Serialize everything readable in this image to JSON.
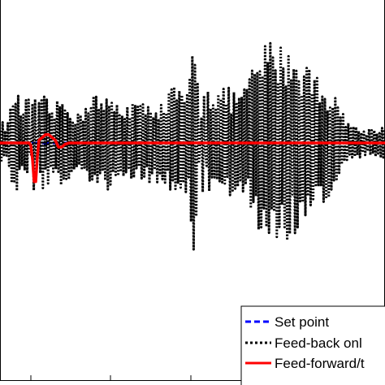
{
  "chart_data": {
    "type": "line",
    "title": "",
    "xlabel": "",
    "ylabel": "",
    "x_range": [
      0,
      474
    ],
    "ylim": [
      -1,
      1
    ],
    "grid": false,
    "legend_placement": "bottom-right",
    "series": [
      {
        "name": "Set point",
        "color": "#0000ff",
        "style": "dashed",
        "envelope": [
          [
            0,
            0
          ]
        ]
      },
      {
        "name": "Feed-back onl",
        "color": "#000000",
        "style": "dotted",
        "envelope": [
          [
            0,
            0.15
          ],
          [
            10,
            0.16
          ],
          [
            18,
            0.45
          ],
          [
            25,
            0.28
          ],
          [
            35,
            0.35
          ],
          [
            42,
            -0.55
          ],
          [
            48,
            0.3
          ],
          [
            55,
            0.35
          ],
          [
            65,
            0.25
          ],
          [
            75,
            0.35
          ],
          [
            85,
            0.3
          ],
          [
            95,
            0.2
          ],
          [
            105,
            0.3
          ],
          [
            115,
            0.42
          ],
          [
            125,
            0.3
          ],
          [
            135,
            0.35
          ],
          [
            145,
            0.3
          ],
          [
            155,
            0.28
          ],
          [
            162,
            0.35
          ],
          [
            170,
            0.3
          ],
          [
            180,
            0.28
          ],
          [
            190,
            0.32
          ],
          [
            200,
            0.3
          ],
          [
            210,
            0.4
          ],
          [
            218,
            0.45
          ],
          [
            225,
            0.35
          ],
          [
            232,
            0.38
          ],
          [
            238,
            0.92
          ],
          [
            244,
            0.4
          ],
          [
            250,
            -0.6
          ],
          [
            256,
            0.45
          ],
          [
            262,
            0.4
          ],
          [
            270,
            0.4
          ],
          [
            278,
            0.42
          ],
          [
            285,
            0.38
          ],
          [
            292,
            0.4
          ],
          [
            300,
            0.42
          ],
          [
            305,
            0.45
          ],
          [
            312,
            0.58
          ],
          [
            320,
            0.68
          ],
          [
            330,
            0.75
          ],
          [
            340,
            0.78
          ],
          [
            348,
            0.7
          ],
          [
            356,
            0.72
          ],
          [
            364,
            0.68
          ],
          [
            372,
            0.6
          ],
          [
            380,
            0.62
          ],
          [
            390,
            0.5
          ],
          [
            400,
            0.45
          ],
          [
            410,
            0.35
          ],
          [
            420,
            0.28
          ],
          [
            430,
            0.15
          ],
          [
            440,
            0.12
          ],
          [
            450,
            0.1
          ],
          [
            460,
            0.12
          ],
          [
            474,
            0.12
          ]
        ]
      },
      {
        "name": "Feed-forward/t",
        "color": "#ff0000",
        "style": "solid",
        "points": [
          [
            0,
            0
          ],
          [
            30,
            0
          ],
          [
            36,
            0
          ],
          [
            38,
            -0.02
          ],
          [
            40,
            -0.12
          ],
          [
            42,
            -0.28
          ],
          [
            44,
            -0.28
          ],
          [
            46,
            -0.1
          ],
          [
            48,
            0.02
          ],
          [
            52,
            0.04
          ],
          [
            56,
            0.06
          ],
          [
            60,
            0.06
          ],
          [
            64,
            0.04
          ],
          [
            68,
            0.02
          ],
          [
            72,
            -0.03
          ],
          [
            76,
            -0.03
          ],
          [
            80,
            -0.01
          ],
          [
            85,
            0
          ],
          [
            90,
            0
          ],
          [
            474,
            0
          ]
        ]
      }
    ],
    "legend": {
      "entries": [
        "Set point",
        "Feed-back onl",
        "Feed-forward/t"
      ]
    }
  }
}
